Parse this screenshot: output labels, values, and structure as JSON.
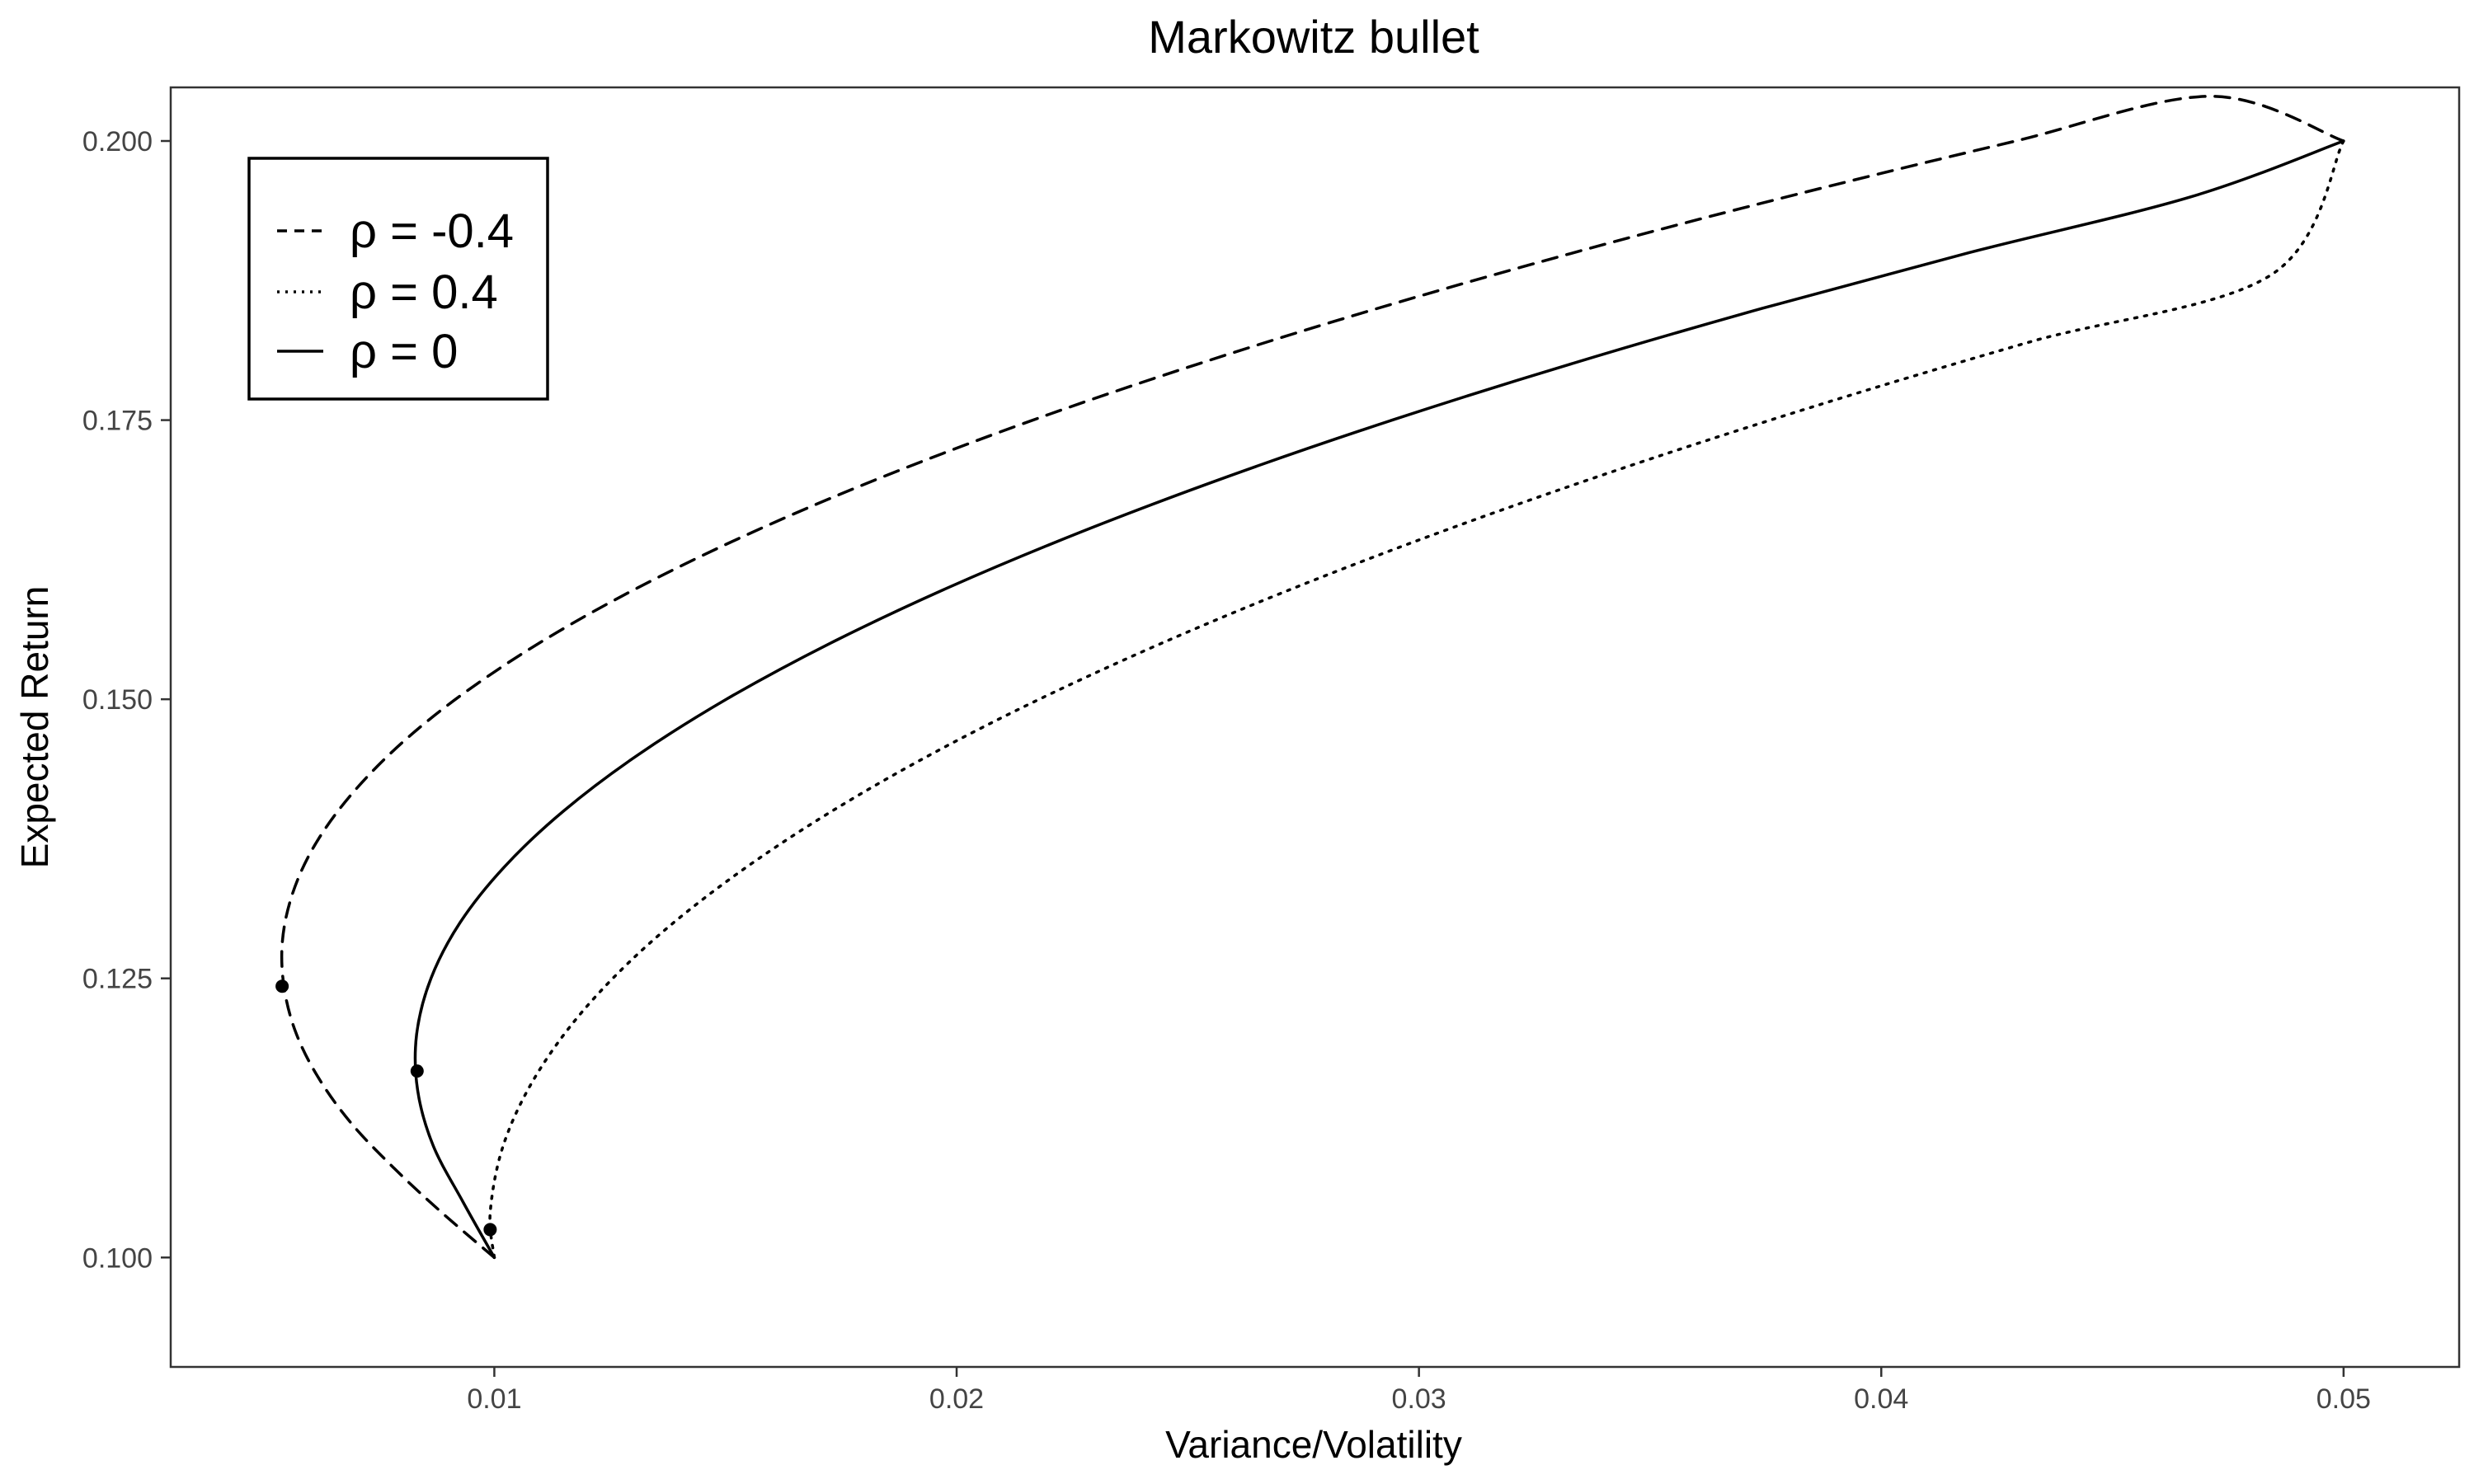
{
  "chart_data": {
    "type": "line",
    "title": "Markowitz bullet",
    "xlabel": "Variance/Volatility",
    "ylabel": "Expected Return",
    "xlim": [
      0.003,
      0.0525
    ],
    "ylim": [
      0.0902,
      0.2048
    ],
    "xticks": [
      0.01,
      0.02,
      0.03,
      0.04,
      0.05
    ],
    "xtick_labels": [
      "0.01",
      "0.02",
      "0.03",
      "0.04",
      "0.05"
    ],
    "yticks": [
      0.1,
      0.125,
      0.15,
      0.175,
      0.2
    ],
    "ytick_labels": [
      "0.100",
      "0.125",
      "0.150",
      "0.175",
      "0.200"
    ],
    "grid": false,
    "legend_position": "top-left",
    "series": [
      {
        "name": "ρ = -0.4",
        "linestyle": "dashed",
        "color": "#000000",
        "x": [
          0.01,
          0.00887,
          0.00783,
          0.00691,
          0.00621,
          0.00572,
          0.00546,
          0.00541,
          0.00559,
          0.00599,
          0.00662,
          0.00747,
          0.00854,
          0.00984,
          0.01136,
          0.01311,
          0.01508,
          0.01727,
          0.01969,
          0.02233,
          0.0252,
          0.02829,
          0.03161,
          0.03515,
          0.03892,
          0.04291,
          0.04713,
          0.05
        ],
        "y": [
          0.1,
          0.104,
          0.108,
          0.112,
          0.116,
          0.12,
          0.124,
          0.128,
          0.132,
          0.136,
          0.14,
          0.144,
          0.148,
          0.152,
          0.156,
          0.16,
          0.164,
          0.168,
          0.172,
          0.176,
          0.18,
          0.184,
          0.188,
          0.192,
          0.196,
          0.2,
          0.204,
          0.2
        ]
      },
      {
        "name": "ρ = 0.4",
        "linestyle": "dotted",
        "color": "#000000",
        "x": [
          0.01,
          0.00991,
          0.01019,
          0.01086,
          0.0119,
          0.01332,
          0.01513,
          0.01731,
          0.01987,
          0.02281,
          0.02613,
          0.02983,
          0.03391,
          0.03837,
          0.04321,
          0.04843,
          0.05
        ],
        "y": [
          0.1,
          0.104,
          0.11,
          0.116,
          0.122,
          0.128,
          0.134,
          0.14,
          0.146,
          0.152,
          0.158,
          0.164,
          0.17,
          0.176,
          0.182,
          0.188,
          0.2
        ]
      },
      {
        "name": "ρ = 0",
        "linestyle": "solid",
        "color": "#000000",
        "x": [
          0.01,
          0.00932,
          0.00868,
          0.00834,
          0.00832,
          0.00863,
          0.00926,
          0.01022,
          0.0115,
          0.0131,
          0.01502,
          0.01726,
          0.01982,
          0.0227,
          0.0259,
          0.02942,
          0.03326,
          0.03742,
          0.0419,
          0.0467,
          0.05
        ],
        "y": [
          0.1,
          0.105,
          0.11,
          0.115,
          0.12,
          0.125,
          0.13,
          0.135,
          0.14,
          0.145,
          0.15,
          0.155,
          0.16,
          0.165,
          0.17,
          0.175,
          0.18,
          0.185,
          0.19,
          0.195,
          0.2
        ]
      }
    ],
    "min_variance_points": [
      {
        "series": "ρ = -0.4",
        "x": 0.00541,
        "y": 0.1243
      },
      {
        "series": "ρ = 0",
        "x": 0.00833,
        "y": 0.1167
      },
      {
        "series": "ρ = 0.4",
        "x": 0.00991,
        "y": 0.1025
      }
    ]
  }
}
